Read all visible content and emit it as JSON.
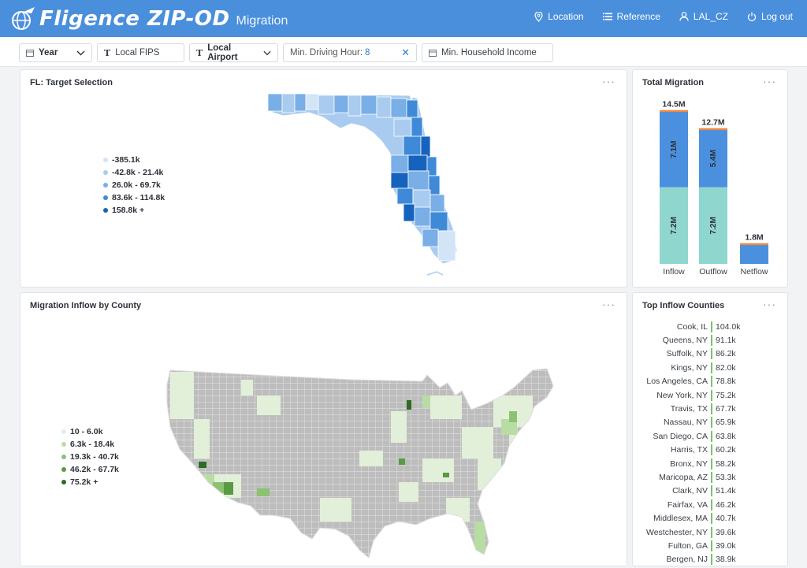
{
  "app": {
    "title": "Fligence ZIP-OD",
    "subtitle": "Migration"
  },
  "nav": {
    "location": "Location",
    "reference": "Reference",
    "user": "LAL_CZ",
    "logout": "Log out"
  },
  "filters": {
    "year": "Year",
    "local_fips": "Local FIPS",
    "local_airport": "Local Airport",
    "driving_label": "Min. Driving Hour:",
    "driving_value": "8",
    "household_income": "Min. Household Income"
  },
  "fl_panel": {
    "title": "FL: Target Selection",
    "legend": [
      {
        "label": "-385.1k",
        "color": "#d3e4f7"
      },
      {
        "label": "-42.8k - 21.4k",
        "color": "#a9cbef"
      },
      {
        "label": "26.0k - 69.7k",
        "color": "#79aee6"
      },
      {
        "label": "83.6k - 114.8k",
        "color": "#3f8ad8"
      },
      {
        "label": "158.8k +",
        "color": "#1663bd"
      }
    ]
  },
  "total_migration": {
    "title": "Total Migration",
    "chart_data": {
      "type": "bar",
      "categories": [
        "Inflow",
        "Outflow",
        "Netflow"
      ],
      "series": [
        {
          "values": [
            7.2,
            7.2,
            0
          ],
          "color": "#8fd6cf"
        },
        {
          "values": [
            7.1,
            5.4,
            1.8
          ],
          "color": "#4a90df"
        }
      ],
      "totals": [
        "14.5M",
        "12.7M",
        "1.8M"
      ],
      "segment_labels": [
        [
          "7.2M",
          "7.1M"
        ],
        [
          "7.2M",
          "5.4M"
        ],
        [
          "",
          ""
        ]
      ],
      "ylim": [
        0,
        14.5
      ],
      "cap_color": "#f0883e"
    }
  },
  "us_panel": {
    "title": "Migration Inflow by County",
    "legend": [
      {
        "label": "10 - 6.0k",
        "color": "#e2f0d9"
      },
      {
        "label": "6.3k - 18.4k",
        "color": "#b9dca5"
      },
      {
        "label": "19.3k - 40.7k",
        "color": "#8cc270"
      },
      {
        "label": "46.2k - 67.7k",
        "color": "#5a9a44"
      },
      {
        "label": "75.2k +",
        "color": "#2e6b24"
      }
    ]
  },
  "top_inflow": {
    "title": "Top Inflow Counties",
    "items": [
      {
        "name": "Cook, IL",
        "value": "104.0k"
      },
      {
        "name": "Queens, NY",
        "value": "91.1k"
      },
      {
        "name": "Suffolk, NY",
        "value": "86.2k"
      },
      {
        "name": "Kings, NY",
        "value": "82.0k"
      },
      {
        "name": "Los Angeles, CA",
        "value": "78.8k"
      },
      {
        "name": "New York, NY",
        "value": "75.2k"
      },
      {
        "name": "Travis, TX",
        "value": "67.7k"
      },
      {
        "name": "Nassau, NY",
        "value": "65.9k"
      },
      {
        "name": "San Diego, CA",
        "value": "63.8k"
      },
      {
        "name": "Harris, TX",
        "value": "60.2k"
      },
      {
        "name": "Bronx, NY",
        "value": "58.2k"
      },
      {
        "name": "Maricopa, AZ",
        "value": "53.3k"
      },
      {
        "name": "Clark, NV",
        "value": "51.4k"
      },
      {
        "name": "Fairfax, VA",
        "value": "46.2k"
      },
      {
        "name": "Middlesex, MA",
        "value": "40.7k"
      },
      {
        "name": "Westchester, NY",
        "value": "39.6k"
      },
      {
        "name": "Fulton, GA",
        "value": "39.0k"
      },
      {
        "name": "Bergen, NJ",
        "value": "38.9k"
      }
    ]
  }
}
